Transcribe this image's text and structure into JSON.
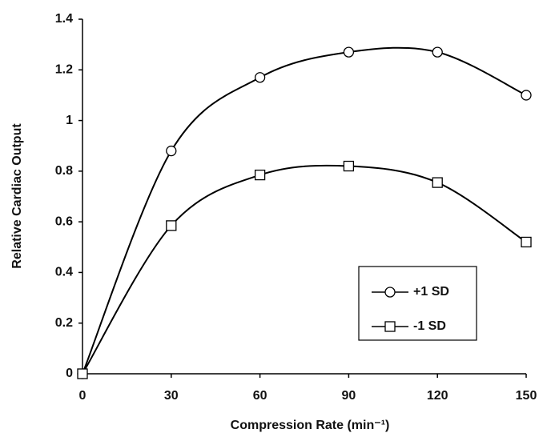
{
  "chart_data": {
    "type": "line",
    "x_label": "Compression Rate (min⁻¹)",
    "y_label": "Relative Cardiac Output",
    "x": [
      0,
      30,
      60,
      90,
      120,
      150
    ],
    "series": [
      {
        "name": "+1 SD",
        "color": "#000000",
        "marker": "circle",
        "values": [
          0,
          0.88,
          1.17,
          1.27,
          1.27,
          1.1
        ]
      },
      {
        "name": "-1 SD",
        "color": "#000000",
        "marker": "square",
        "values": [
          0,
          0.585,
          0.785,
          0.82,
          0.755,
          0.52
        ]
      }
    ],
    "xlim": [
      0,
      150
    ],
    "xticks": [
      0,
      30,
      60,
      90,
      120,
      150
    ],
    "ylim": [
      0,
      1.4
    ],
    "yticks": [
      0,
      0.2,
      0.4,
      0.6,
      0.8,
      1,
      1.2,
      1.4
    ],
    "grid": false,
    "legend_position": "lower right",
    "smooth": true
  }
}
